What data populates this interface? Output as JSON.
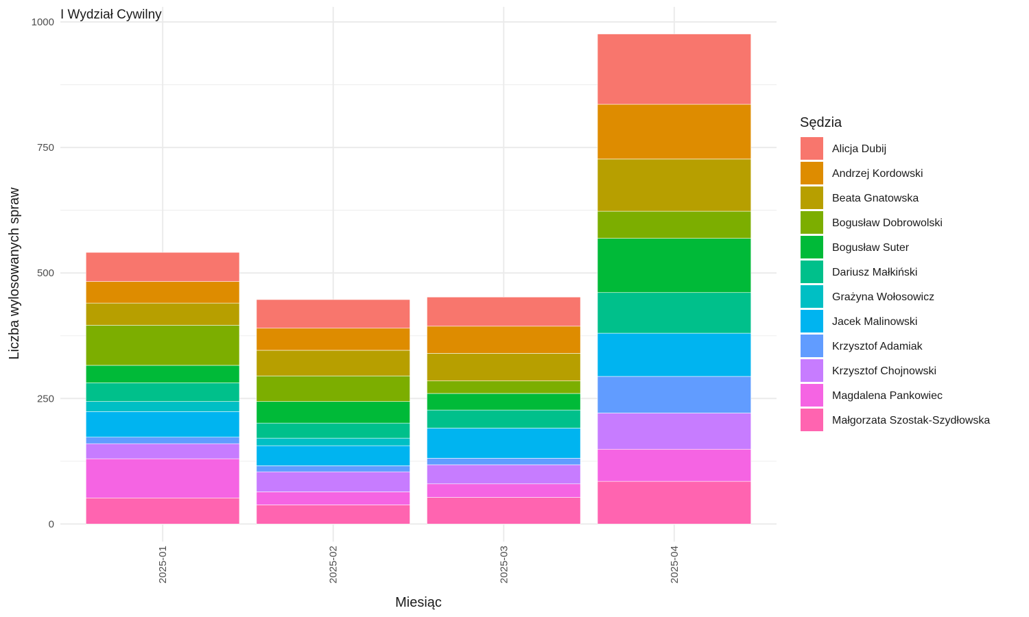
{
  "chart_data": {
    "type": "bar",
    "stacked": true,
    "title": "I Wydział Cywilny",
    "xlabel": "Miesiąc",
    "ylabel": "Liczba wylosowanych spraw",
    "ylim": [
      -35,
      1030
    ],
    "yticks": [
      0,
      250,
      500,
      750,
      1000
    ],
    "grid": true,
    "legend_title": "Sędzia",
    "legend_position": "right",
    "categories": [
      "2025-01",
      "2025-02",
      "2025-03",
      "2025-04"
    ],
    "series": [
      {
        "name": "Alicja Dubij",
        "color": "#F8766D",
        "values": [
          58,
          57,
          58,
          140
        ]
      },
      {
        "name": "Andrzej Kordowski",
        "color": "#DE8C00",
        "values": [
          43,
          44,
          54,
          109
        ]
      },
      {
        "name": "Beata Gnatowska",
        "color": "#B79F00",
        "values": [
          44,
          51,
          55,
          104
        ]
      },
      {
        "name": "Bogusław Dobrowolski",
        "color": "#7CAE00",
        "values": [
          80,
          51,
          25,
          54
        ]
      },
      {
        "name": "Bogusław Suter",
        "color": "#00BA38",
        "values": [
          35,
          43,
          33,
          108
        ]
      },
      {
        "name": "Dariusz Małkiński",
        "color": "#00C08B",
        "values": [
          37,
          30,
          36,
          81
        ]
      },
      {
        "name": "Grażyna Wołosowicz",
        "color": "#00BFC4",
        "values": [
          20,
          15,
          0,
          0
        ]
      },
      {
        "name": "Jacek Malinowski",
        "color": "#00B4F0",
        "values": [
          51,
          40,
          60,
          86
        ]
      },
      {
        "name": "Krzysztof Adamiak",
        "color": "#619CFF",
        "values": [
          13,
          12,
          13,
          73
        ]
      },
      {
        "name": "Krzysztof Chojnowski",
        "color": "#C77CFF",
        "values": [
          30,
          40,
          38,
          72
        ]
      },
      {
        "name": "Magdalena Pankowiec",
        "color": "#F564E3",
        "values": [
          78,
          26,
          27,
          64
        ]
      },
      {
        "name": "Małgorzata Szostak-Szydłowska",
        "color": "#FF64B0",
        "values": [
          52,
          38,
          53,
          85
        ]
      }
    ]
  }
}
